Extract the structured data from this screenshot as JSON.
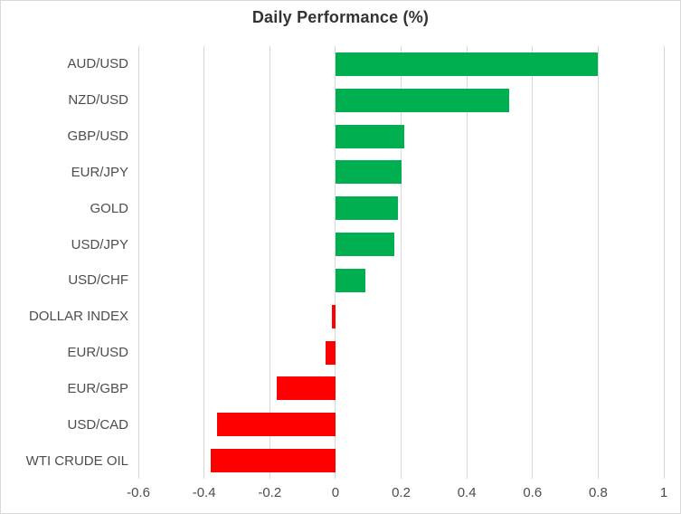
{
  "chart_data": {
    "type": "bar",
    "orientation": "horizontal",
    "title": "Daily Performance (%)",
    "categories": [
      "AUD/USD",
      "NZD/USD",
      "GBP/USD",
      "EUR/JPY",
      "GOLD",
      "USD/JPY",
      "USD/CHF",
      "DOLLAR INDEX",
      "EUR/USD",
      "EUR/GBP",
      "USD/CAD",
      "WTI CRUDE OIL"
    ],
    "values": [
      0.8,
      0.53,
      0.21,
      0.2,
      0.19,
      0.18,
      0.09,
      -0.01,
      -0.03,
      -0.18,
      -0.36,
      -0.38
    ],
    "xlabel": "",
    "ylabel": "",
    "xlim": [
      -0.6,
      1.0
    ],
    "xticks": [
      -0.6,
      -0.4,
      -0.2,
      0,
      0.2,
      0.4,
      0.6,
      0.8,
      1
    ],
    "xtick_labels": [
      "-0.6",
      "-0.4",
      "-0.2",
      "0",
      "0.2",
      "0.4",
      "0.6",
      "0.8",
      "1"
    ],
    "grid": "vertical-on",
    "legend": "none",
    "colors": {
      "positive": "#00B050",
      "negative": "#FF0000",
      "gridline": "#D9D9D9",
      "border": "#D9D9D9",
      "axis_text": "#4D4D4D",
      "title_text": "#333333",
      "background": "#FFFFFF"
    }
  }
}
